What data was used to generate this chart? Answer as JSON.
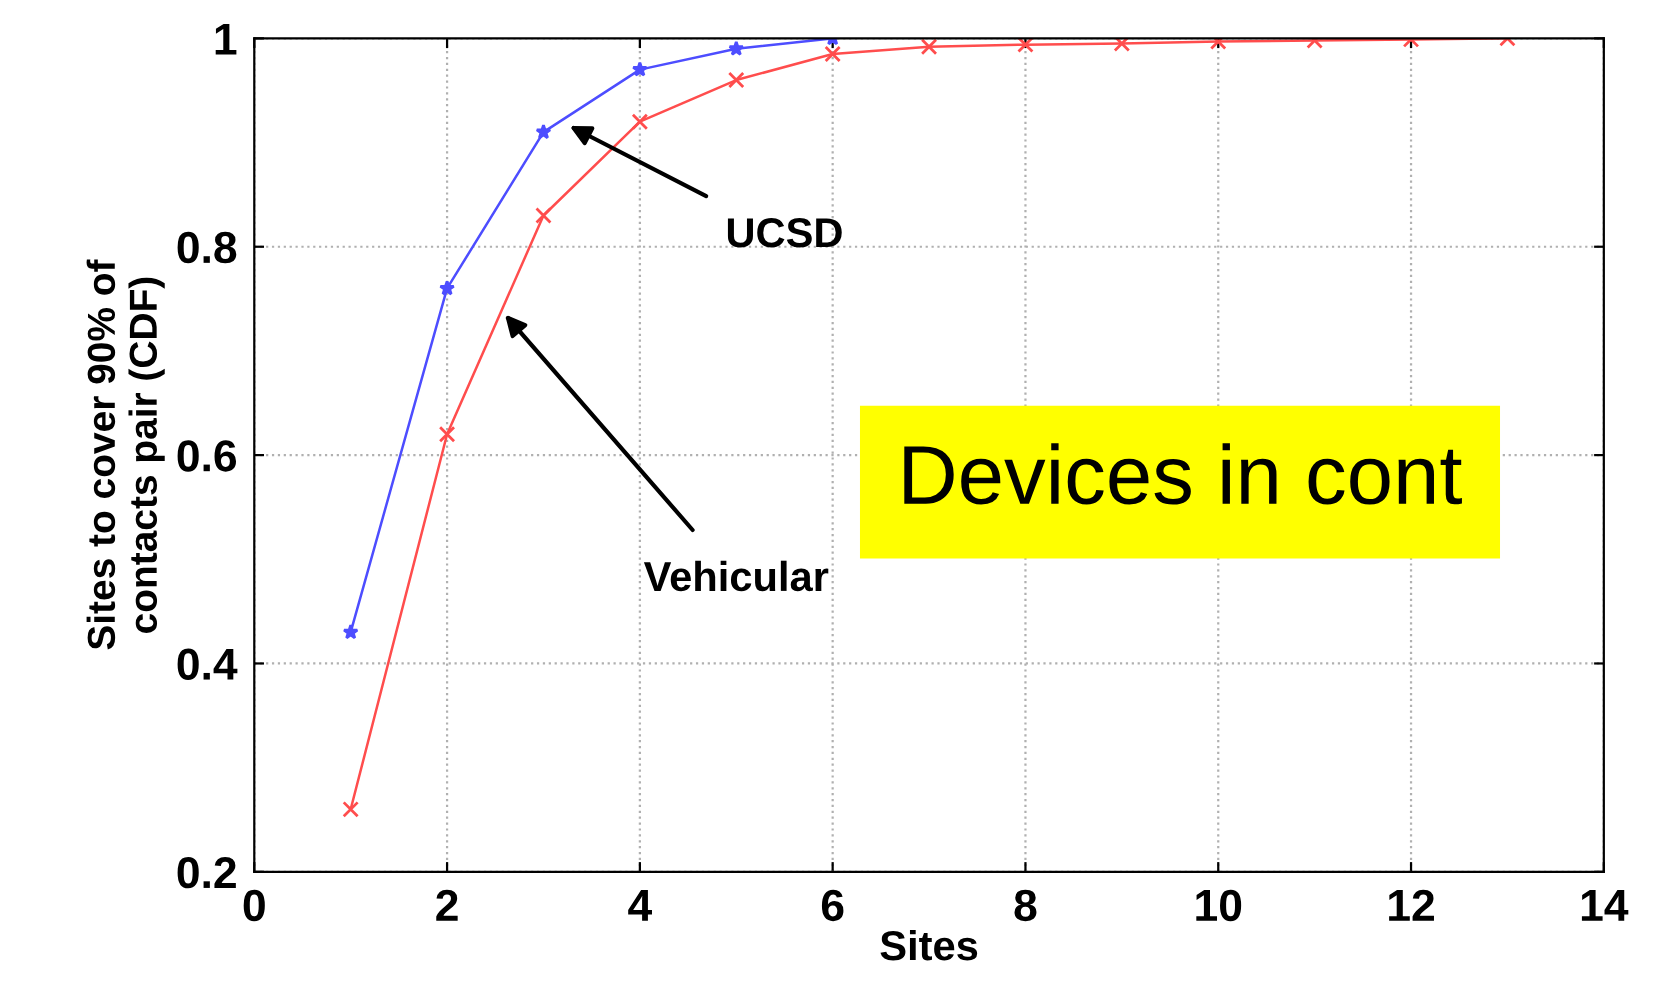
{
  "chart_data": {
    "type": "line",
    "xlabel": "Sites",
    "ylabel": "Sites to cover 90% of\ncontacts pair (CDF)",
    "xlim": [
      0,
      14
    ],
    "xticks": [
      0,
      2,
      4,
      6,
      8,
      10,
      12,
      14
    ],
    "ylim": [
      0.2,
      1
    ],
    "yticks": [
      0.2,
      0.4,
      0.6,
      0.8,
      1
    ],
    "grid": true,
    "legend": false,
    "series": [
      {
        "color": "#4d4dff",
        "marker": "star",
        "x": [
          1,
          2,
          3,
          4,
          5,
          6
        ],
        "values": [
          0.43,
          0.76,
          0.91,
          0.97,
          0.99,
          1.0
        ]
      },
      {
        "color": "#ff4d4d",
        "marker": "cross",
        "x": [
          1,
          2,
          3,
          4,
          5,
          6,
          7,
          8,
          9,
          10,
          11,
          12,
          13
        ],
        "values": [
          0.26,
          0.62,
          0.83,
          0.92,
          0.96,
          0.985,
          0.992,
          0.994,
          0.995,
          0.997,
          0.998,
          0.999,
          1.0
        ]
      }
    ],
    "annotations": [
      {
        "text": "UCSD",
        "x": 3.27,
        "y": 0.916
      },
      {
        "text": "Vehicular",
        "x": 2.6,
        "y": 0.735
      },
      "Devices in cont"
    ]
  }
}
